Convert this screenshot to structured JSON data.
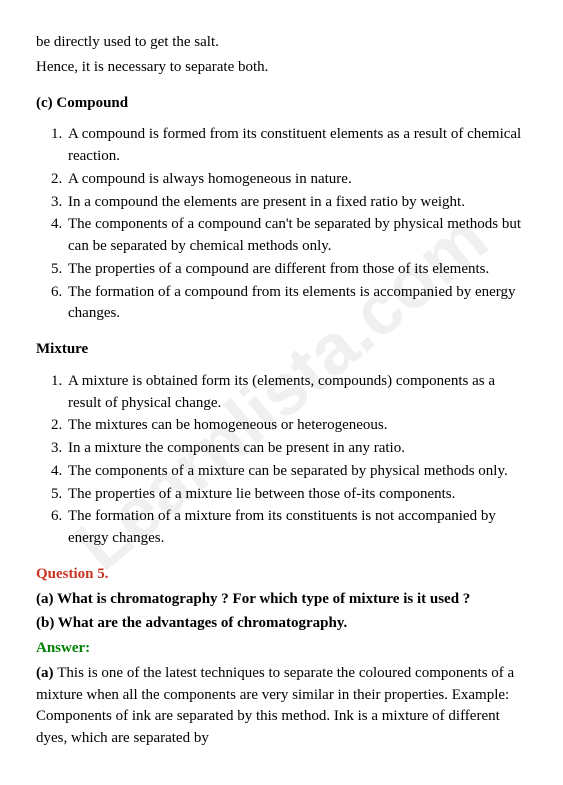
{
  "intro": {
    "line1": "be directly used to get the salt.",
    "line2": "Hence, it is necessary to separate both."
  },
  "section_c": {
    "heading": "(c) Compound",
    "items": [
      "A compound is formed from its constituent elements as a result of chemical reaction.",
      "A compound is always homogeneous in nature.",
      "In a compound the elements are present in a fixed ratio by weight.",
      "The components of a compound can't be separated by physical methods but can be separated by chemical methods only.",
      "The properties of a compound are different from those of its elements.",
      "The formation of a compound from its elements is accompanied by energy changes."
    ]
  },
  "mixture": {
    "heading": "Mixture",
    "items": [
      "A mixture is obtained form its (elements, compounds) components as a result of physical change.",
      "The mixtures can be homogeneous or heterogeneous.",
      "In a mixture the components can be present in any ratio.",
      "The components of a mixture can be separated by physical methods only.",
      "The properties of a mixture lie between those of-its components.",
      "The formation of a mixture from its constituents is not accompanied by energy changes."
    ]
  },
  "question5": {
    "label": "Question 5.",
    "part_a": "(a) What is chromatography ? For which type of mixture is it used ?",
    "part_b": "(b) What are the advantages of chromatography.",
    "answer_label": "Answer:",
    "answer_a_prefix": "(a) ",
    "answer_a": "This is one of the latest techniques to separate the coloured components of a mixture when all the components are very similar in their properties. Example: Components of ink are separated by this method. Ink is a mixture of different dyes, which are separated by"
  },
  "watermark_text": "Learnlista.com"
}
